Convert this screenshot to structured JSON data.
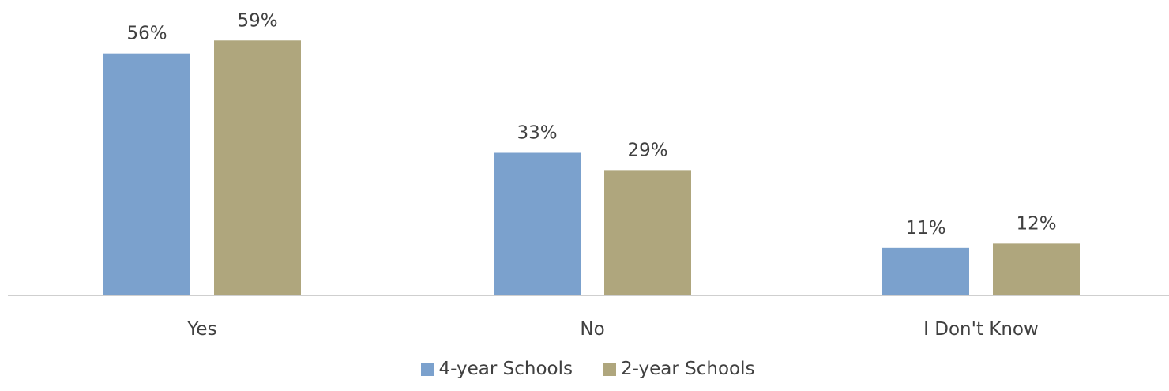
{
  "chart_data": {
    "type": "bar",
    "categories": [
      "Yes",
      "No",
      "I Don't Know"
    ],
    "series": [
      {
        "name": "4-year Schools",
        "values": [
          56,
          33,
          11
        ],
        "labels": [
          "56%",
          "33%",
          "11%"
        ],
        "color": "#7ba1cd"
      },
      {
        "name": "2-year Schools",
        "values": [
          59,
          29,
          12
        ],
        "labels": [
          "59%",
          "29%",
          "12%"
        ],
        "color": "#afa67d"
      }
    ],
    "title": "",
    "xlabel": "",
    "ylabel": "",
    "ylim": [
      0,
      60
    ],
    "grid": false,
    "legend": "bottom-center",
    "axis_color": "#bfbfbf",
    "text_color": "#404040"
  }
}
